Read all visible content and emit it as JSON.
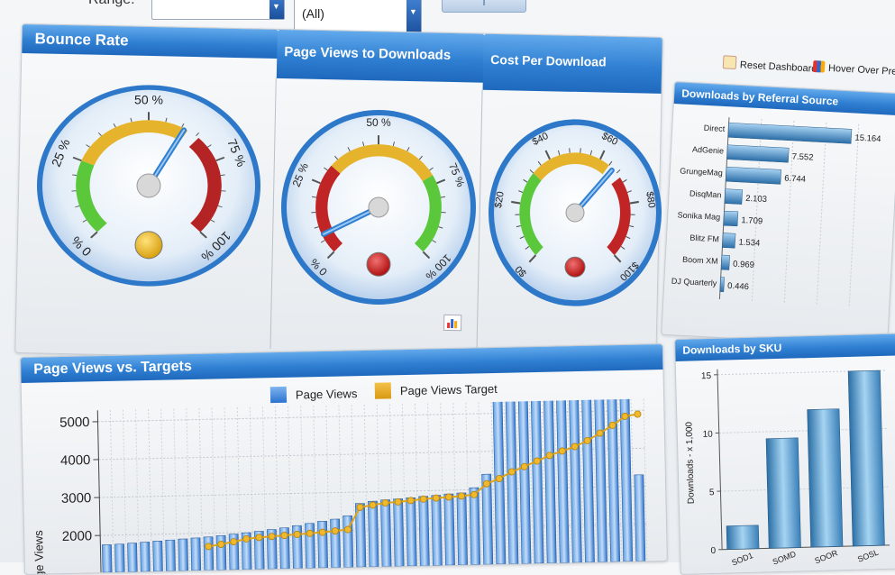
{
  "filters": {
    "date_range_label": "Range:",
    "date_range_value": "",
    "second_value": "(All)",
    "button_1": "",
    "button_2": "T"
  },
  "links": {
    "reset": "Reset Dashboard",
    "hover": "Hover Over Preview"
  },
  "bounce": {
    "title": "Bounce Rate",
    "labels": [
      "0 %",
      "25 %",
      "50 %",
      "75 %",
      "100 %"
    ],
    "value": 61,
    "light": "yellow"
  },
  "pv_downloads": {
    "title": "Page Views to Downloads",
    "labels": [
      "0 %",
      "25 %",
      "50 %",
      "75 %",
      "100 %"
    ],
    "value": 7,
    "light": "red"
  },
  "cost": {
    "title": "Cost Per Download",
    "labels": [
      "$0",
      "$20",
      "$40",
      "$60",
      "$80",
      "$100"
    ],
    "value": 66,
    "light": "red"
  },
  "referral": {
    "title": "Downloads by Referral Source",
    "chart_data": {
      "type": "bar",
      "orientation": "horizontal",
      "categories": [
        "Direct",
        "AdGenie",
        "GrungeMag",
        "DisqMan",
        "Sonika Mag",
        "Blitz FM",
        "Boom XM",
        "DJ Quarterly"
      ],
      "values": [
        15.164,
        7.552,
        6.744,
        2.103,
        1.709,
        1.534,
        0.969,
        0.446
      ],
      "value_labels": [
        "15.164",
        "7.552",
        "6.744",
        "2.103",
        "1.709",
        "1.534",
        "0.969",
        "0.446"
      ],
      "xlim": [
        0,
        16
      ]
    }
  },
  "sku": {
    "title": "Downloads by SKU",
    "chart_data": {
      "type": "bar",
      "categories": [
        "SOD1",
        "SOMD",
        "SOOR",
        "SOSL"
      ],
      "values": [
        2,
        9.4,
        11.8,
        15
      ],
      "ylabel": "Downloads - x 1,000",
      "yticks": [
        "0",
        "5",
        "10",
        "15"
      ],
      "ylim": [
        0,
        15
      ]
    }
  },
  "pvt": {
    "title": "Page Views vs. Targets",
    "legend": [
      "Page Views",
      "Page Views Target"
    ],
    "chart_data": {
      "type": "bar",
      "ylabel": "Page Views",
      "yticks": [
        "2000",
        "3000",
        "4000",
        "5000"
      ],
      "ylim": [
        1500,
        5300
      ],
      "series": [
        {
          "name": "Page Views",
          "type": "bar",
          "values": [
            1750,
            1760,
            1780,
            1800,
            1820,
            1840,
            1860,
            1880,
            1900,
            1930,
            1960,
            1990,
            2020,
            2060,
            2100,
            2150,
            2200,
            2250,
            2300,
            2380,
            2700,
            2750,
            2780,
            2800,
            2820,
            2850,
            2870,
            2900,
            2920,
            3050,
            3400,
            5350,
            5350,
            5350,
            5350,
            5350,
            5350,
            5350,
            5350,
            5350,
            5350,
            5350,
            3300
          ]
        },
        {
          "name": "Page Views Target",
          "type": "line",
          "values": [
            null,
            null,
            null,
            null,
            null,
            null,
            null,
            null,
            1650,
            1700,
            1760,
            1830,
            1860,
            1880,
            1900,
            1920,
            1940,
            1960,
            1990,
            2020,
            2600,
            2650,
            2700,
            2720,
            2750,
            2780,
            2800,
            2820,
            2840,
            2870,
            3150,
            3280,
            3450,
            3580,
            3720,
            3860,
            3970,
            4080,
            4230,
            4420,
            4620,
            4850,
            4900
          ]
        }
      ]
    }
  }
}
